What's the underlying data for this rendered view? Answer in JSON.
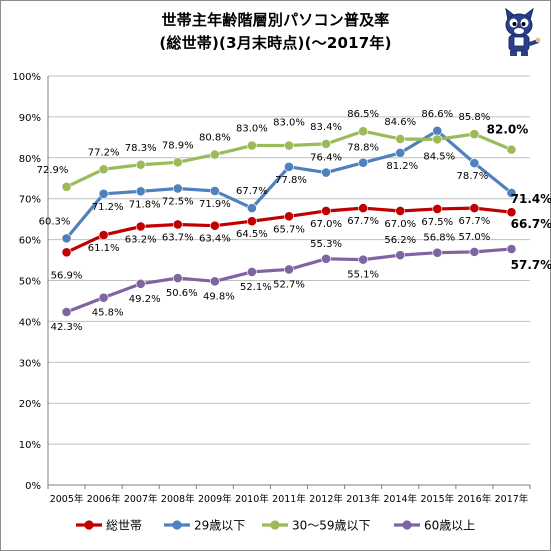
{
  "title_line1": "世帯主年齢階層別パソコン普及率",
  "title_line2": "(総世帯)(3月末時点)(～2017年)",
  "chart_data": {
    "type": "line",
    "categories": [
      "2005年",
      "2006年",
      "2007年",
      "2008年",
      "2009年",
      "2010年",
      "2011年",
      "2012年",
      "2013年",
      "2014年",
      "2015年",
      "2016年",
      "2017年"
    ],
    "y_ticks": [
      "0%",
      "10%",
      "20%",
      "30%",
      "40%",
      "50%",
      "60%",
      "70%",
      "80%",
      "90%",
      "100%"
    ],
    "ylim": [
      0,
      100
    ],
    "grid": true,
    "legend_position": "bottom",
    "series": [
      {
        "name": "総世帯",
        "color": "#c00000",
        "values": [
          56.9,
          61.1,
          63.2,
          63.7,
          63.4,
          64.5,
          65.7,
          67.0,
          67.7,
          67.0,
          67.5,
          67.7,
          66.7
        ],
        "labels": [
          "56.9%",
          "61.1%",
          "63.2%",
          "63.7%",
          "63.4%",
          "64.5%",
          "65.7%",
          "67.0%",
          "67.7%",
          "67.0%",
          "67.5%",
          "67.7%",
          "66.7%"
        ]
      },
      {
        "name": "29歳以下",
        "color": "#4f81bd",
        "values": [
          60.3,
          71.2,
          71.8,
          72.5,
          71.9,
          67.7,
          77.8,
          76.4,
          78.8,
          81.2,
          86.6,
          78.7,
          71.4
        ],
        "labels": [
          "60.3%",
          "71.2%",
          "71.8%",
          "72.5%",
          "71.9%",
          "67.7%",
          "77.8%",
          "76.4%",
          "78.8%",
          "81.2%",
          "86.6%",
          "78.7%",
          "71.4%"
        ]
      },
      {
        "name": "30～59歳以下",
        "color": "#9bbb59",
        "values": [
          72.9,
          77.2,
          78.3,
          78.9,
          80.8,
          83.0,
          83.0,
          83.4,
          86.5,
          84.6,
          84.5,
          85.8,
          82.0
        ],
        "labels": [
          "72.9%",
          "77.2%",
          "78.3%",
          "78.9%",
          "80.8%",
          "83.0%",
          "83.0%",
          "83.4%",
          "86.5%",
          "84.6%",
          "84.5%",
          "85.8%",
          "82.0%"
        ]
      },
      {
        "name": "60歳以上",
        "color": "#8064a2",
        "values": [
          42.3,
          45.8,
          49.2,
          50.6,
          49.8,
          52.1,
          52.7,
          55.3,
          55.1,
          56.2,
          56.8,
          57.0,
          57.7
        ],
        "labels": [
          "42.3%",
          "45.8%",
          "49.2%",
          "50.6%",
          "49.8%",
          "52.1%",
          "52.7%",
          "55.3%",
          "55.1%",
          "56.2%",
          "56.8%",
          "57.0%",
          "57.7%"
        ]
      }
    ]
  }
}
